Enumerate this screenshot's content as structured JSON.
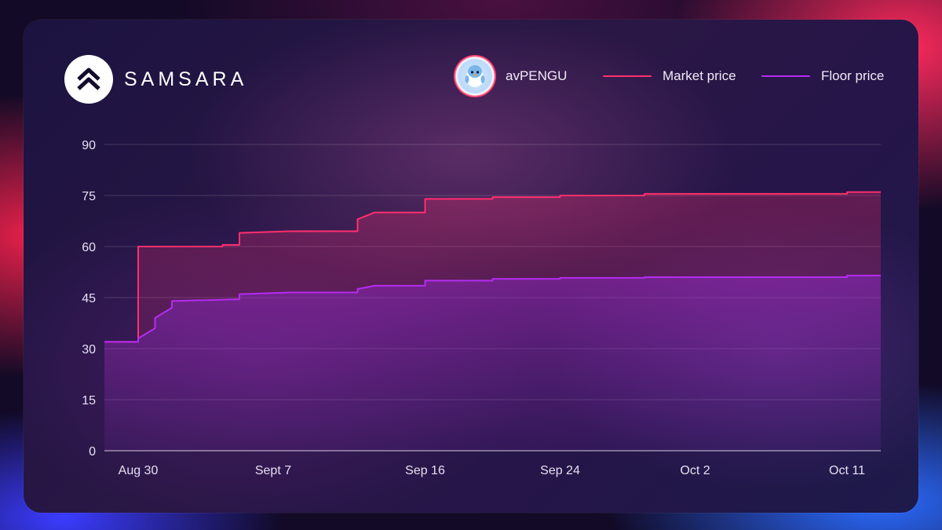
{
  "brand": {
    "name": "SAMSARA",
    "logo_icon": "double-chevron-up-icon"
  },
  "token": {
    "name": "avPENGU",
    "avatar_icon": "penguin-avatar-icon"
  },
  "legend": {
    "market_label": "Market price",
    "floor_label": "Floor price"
  },
  "colors": {
    "market": "#ff2f6e",
    "floor": "#b42cf0",
    "grid": "rgba(255,255,255,0.16)"
  },
  "chart_data": {
    "type": "line",
    "title": "",
    "xlabel": "",
    "ylabel": "",
    "ylim": [
      0,
      90
    ],
    "yticks": [
      0,
      15,
      30,
      45,
      60,
      75,
      90
    ],
    "xlim": [
      "2024-08-28",
      "2024-10-13"
    ],
    "xticks": [
      {
        "date": "2024-08-30",
        "label": "Aug 30"
      },
      {
        "date": "2024-09-07",
        "label": "Sept 7"
      },
      {
        "date": "2024-09-16",
        "label": "Sep 16"
      },
      {
        "date": "2024-09-24",
        "label": "Sep 24"
      },
      {
        "date": "2024-10-02",
        "label": "Oct 2"
      },
      {
        "date": "2024-10-11",
        "label": "Oct 11"
      }
    ],
    "grid": true,
    "legend_position": "top-right",
    "series": [
      {
        "name": "Market price",
        "step": true,
        "points": [
          [
            "2024-08-28",
            32
          ],
          [
            "2024-08-30",
            32
          ],
          [
            "2024-08-30",
            60
          ],
          [
            "2024-09-04",
            60
          ],
          [
            "2024-09-04",
            60.5
          ],
          [
            "2024-09-05",
            60.5
          ],
          [
            "2024-09-05",
            64
          ],
          [
            "2024-09-08",
            64.5
          ],
          [
            "2024-09-12",
            64.5
          ],
          [
            "2024-09-12",
            68
          ],
          [
            "2024-09-13",
            70
          ],
          [
            "2024-09-16",
            70
          ],
          [
            "2024-09-16",
            74
          ],
          [
            "2024-09-20",
            74
          ],
          [
            "2024-09-20",
            74.5
          ],
          [
            "2024-09-24",
            74.5
          ],
          [
            "2024-09-24",
            75
          ],
          [
            "2024-09-29",
            75
          ],
          [
            "2024-09-29",
            75.5
          ],
          [
            "2024-10-11",
            75.5
          ],
          [
            "2024-10-11",
            76
          ],
          [
            "2024-10-13",
            76
          ]
        ]
      },
      {
        "name": "Floor price",
        "step": true,
        "points": [
          [
            "2024-08-28",
            32
          ],
          [
            "2024-08-30",
            32
          ],
          [
            "2024-08-30",
            33
          ],
          [
            "2024-08-31",
            36
          ],
          [
            "2024-08-31",
            39
          ],
          [
            "2024-09-01",
            42
          ],
          [
            "2024-09-01",
            44
          ],
          [
            "2024-09-05",
            44.5
          ],
          [
            "2024-09-05",
            46
          ],
          [
            "2024-09-08",
            46.5
          ],
          [
            "2024-09-12",
            46.5
          ],
          [
            "2024-09-12",
            47.5
          ],
          [
            "2024-09-13",
            48.5
          ],
          [
            "2024-09-16",
            48.5
          ],
          [
            "2024-09-16",
            50
          ],
          [
            "2024-09-20",
            50
          ],
          [
            "2024-09-20",
            50.5
          ],
          [
            "2024-09-24",
            50.5
          ],
          [
            "2024-09-24",
            50.8
          ],
          [
            "2024-09-29",
            50.8
          ],
          [
            "2024-09-29",
            51
          ],
          [
            "2024-10-11",
            51
          ],
          [
            "2024-10-11",
            51.5
          ],
          [
            "2024-10-13",
            51.5
          ]
        ]
      }
    ]
  }
}
